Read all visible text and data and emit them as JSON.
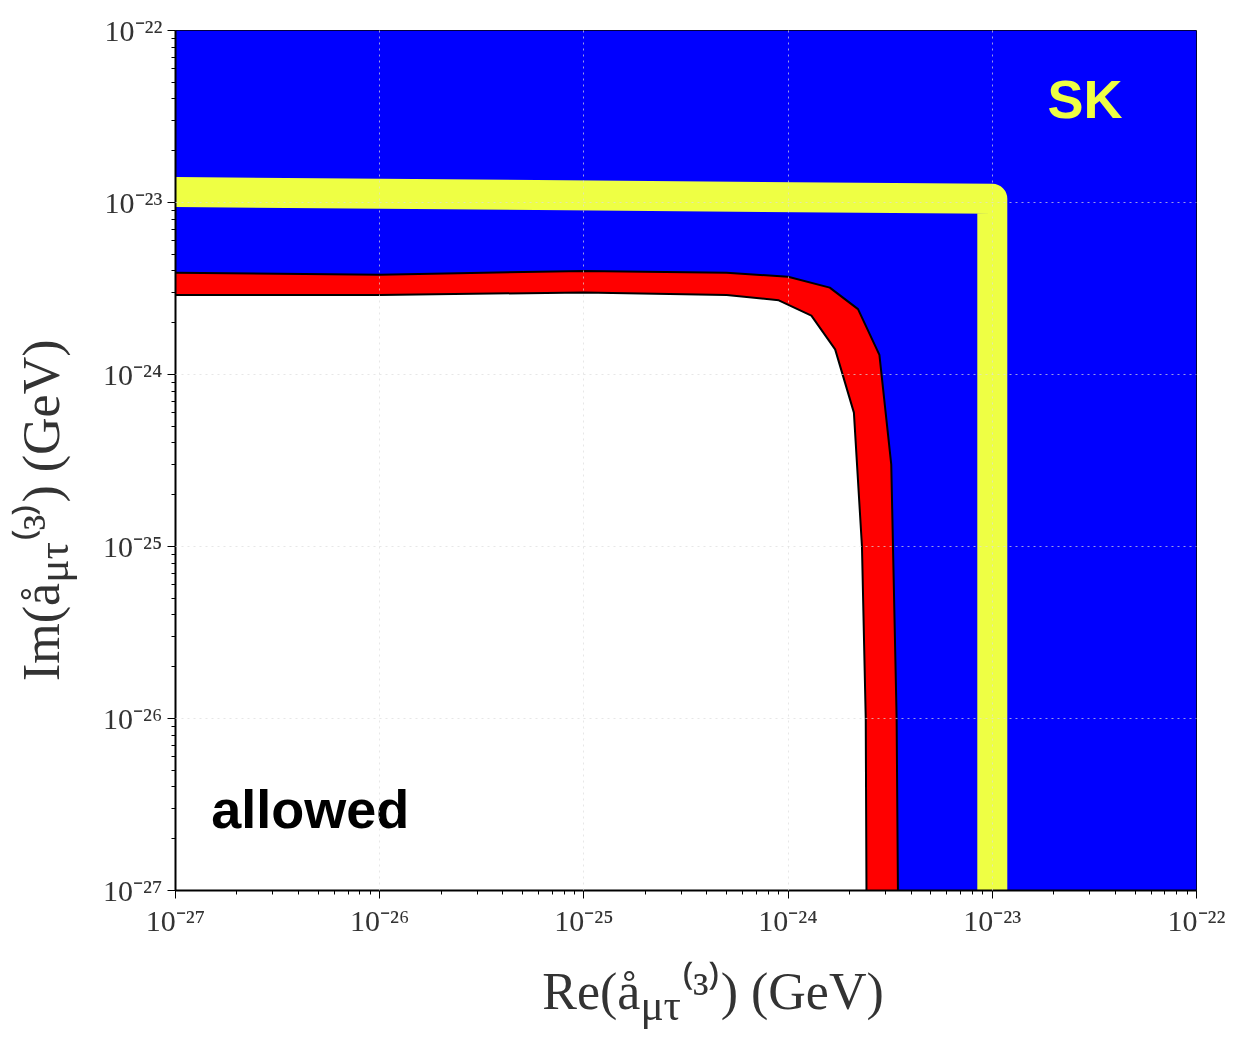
{
  "chart_data": {
    "type": "area",
    "xlabel": "Re(å$_{μτ}$⁽³⁾) (GeV)",
    "ylabel": "Im(å$_{μτ}$⁽³⁾) (GeV)",
    "log": "xy",
    "xlim": [
      1e-27,
      1e-22
    ],
    "ylim": [
      1e-27,
      1e-22
    ],
    "xticks": [
      {
        "value": 1e-27,
        "label": "10⁻²⁷"
      },
      {
        "value": 1e-26,
        "label": "10⁻²⁶"
      },
      {
        "value": 1e-25,
        "label": "10⁻²⁵"
      },
      {
        "value": 1e-24,
        "label": "10⁻²⁴"
      },
      {
        "value": 1e-23,
        "label": "10⁻²³"
      },
      {
        "value": 1e-22,
        "label": "10⁻²²"
      }
    ],
    "yticks": [
      {
        "value": 1e-27,
        "label": "10⁻²⁷"
      },
      {
        "value": 1e-26,
        "label": "10⁻²⁶"
      },
      {
        "value": 1e-25,
        "label": "10⁻²⁵"
      },
      {
        "value": 1e-24,
        "label": "10⁻²⁴"
      },
      {
        "value": 1e-23,
        "label": "10⁻²³"
      },
      {
        "value": 1e-22,
        "label": "10⁻²²"
      }
    ],
    "grid": true,
    "series": [
      {
        "color": "#0000ff",
        "x": [
          1e-27,
          1e-22
        ],
        "values": [
          1e-22,
          1e-22
        ]
      },
      {
        "color": "#ff0000",
        "x": [
          1e-27,
          1e-26,
          1e-25,
          5e-25,
          1e-24,
          1.6e-24,
          2.2e-24,
          2.8e-24,
          3.2e-24,
          3.4e-24,
          3.45e-24
        ],
        "values": [
          3.9e-24,
          3.8e-24,
          4e-24,
          3.9e-24,
          3.7e-24,
          3.2e-24,
          2.4e-24,
          1.3e-24,
          3e-25,
          1e-26,
          1e-27
        ]
      },
      {
        "color": "#ffffff",
        "x": [
          1e-27,
          1e-26,
          1e-25,
          5e-25,
          9e-25,
          1.3e-24,
          1.7e-24,
          2.1e-24,
          2.3e-24,
          2.4e-24,
          2.42e-24
        ],
        "values": [
          2.9e-24,
          2.9e-24,
          3e-24,
          2.9e-24,
          2.7e-24,
          2.2e-24,
          1.4e-24,
          6e-25,
          1e-25,
          1e-26,
          1e-27
        ]
      },
      {
        "type": "line",
        "color": "#eeff44",
        "x": [
          1e-27,
          1e-23,
          1e-23
        ],
        "values": [
          1.15e-23,
          1.05e-23,
          1e-27
        ]
      }
    ],
    "annotations": [
      "SK",
      "allowed"
    ]
  }
}
